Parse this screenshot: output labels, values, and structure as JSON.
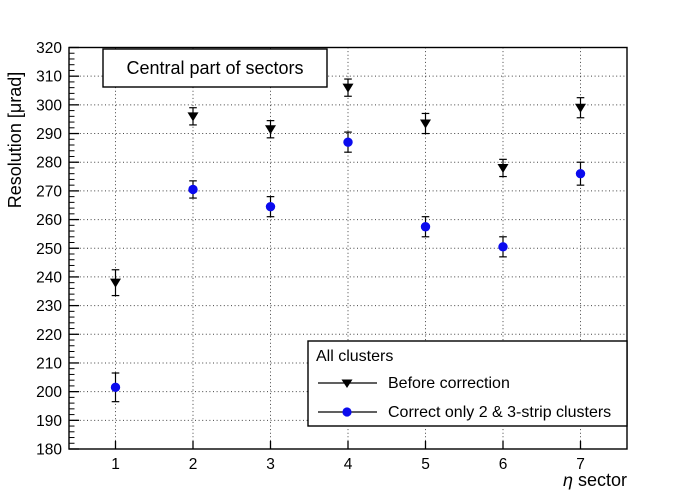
{
  "chart_data": {
    "type": "scatter",
    "title": "Central part of sectors",
    "xlabel": "η sector",
    "xlabel_parts": [
      "η",
      "sector"
    ],
    "ylabel": "Resolution [μrad]",
    "xlim": [
      0.4,
      7.6
    ],
    "ylim": [
      180,
      320
    ],
    "x_ticks": [
      1,
      2,
      3,
      4,
      5,
      6,
      7
    ],
    "y_major_step": 10,
    "y_minor_step": 2,
    "grid": "dotted",
    "grid_color": "#444444",
    "x": [
      1,
      2,
      3,
      4,
      5,
      6,
      7
    ],
    "series": [
      {
        "name": "Before correction",
        "marker": "triangle-down",
        "color": "#000000",
        "values": [
          238,
          296,
          291.5,
          306,
          293.5,
          278,
          299
        ],
        "errors": [
          4.5,
          3,
          3,
          3,
          3.5,
          3,
          3.5
        ]
      },
      {
        "name": "Correct only 2 & 3-strip clusters",
        "marker": "circle",
        "color": "#0b0bee",
        "values": [
          201.5,
          270.5,
          264.5,
          287,
          257.5,
          250.5,
          276
        ],
        "errors": [
          5,
          3,
          3.5,
          3.5,
          3.5,
          3.5,
          4
        ]
      }
    ],
    "legend": {
      "header": "All clusters",
      "position": "bottom-right"
    }
  }
}
